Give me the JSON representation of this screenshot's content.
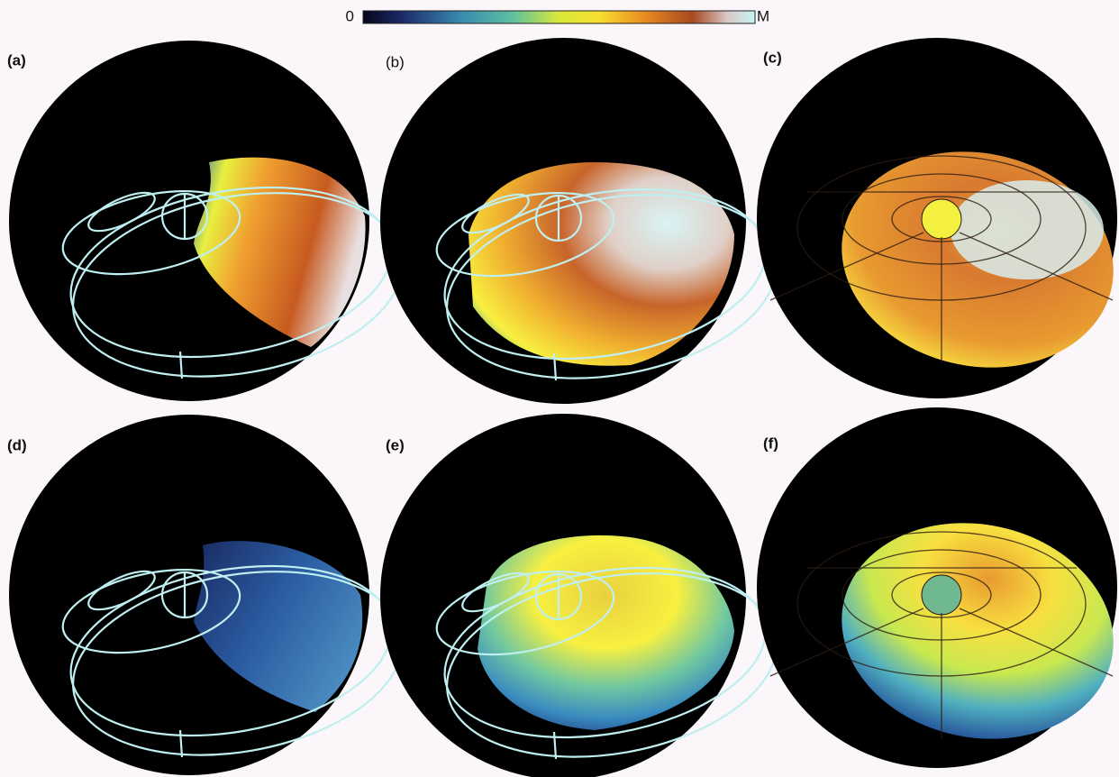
{
  "colorbar": {
    "min_label": "0",
    "max_label": "M"
  },
  "panels": [
    {
      "label": "(a)"
    },
    {
      "label": "(b)"
    },
    {
      "label": "(c)"
    },
    {
      "label": "(d)"
    },
    {
      "label": "(e)"
    },
    {
      "label": "(f)"
    }
  ]
}
